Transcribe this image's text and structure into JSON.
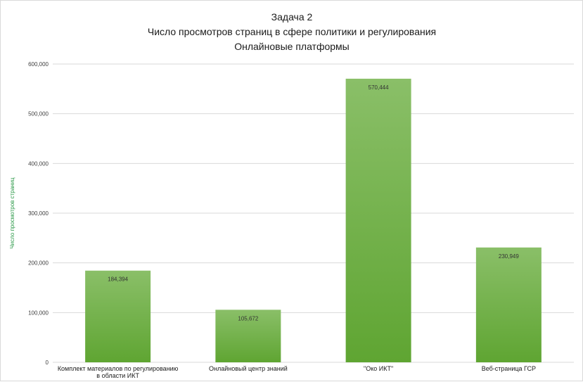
{
  "chart_data": {
    "type": "bar",
    "title": [
      "Задача 2",
      "Число просмотров страниц в сфере политики и регулирования",
      "Онлайновые платформы"
    ],
    "ylabel": "Число просмотров страниц",
    "xlabel": "",
    "categories": [
      [
        "Комплект материалов по регулированию",
        "в области ИКТ"
      ],
      [
        "Онлайновый центр знаний"
      ],
      [
        "\"Око ИКТ\""
      ],
      [
        "Веб-страница ГСР"
      ]
    ],
    "values": [
      184394,
      105672,
      570444,
      230949
    ],
    "data_labels": [
      "184,394",
      "105,672",
      "570,444",
      "230,949"
    ],
    "ylim": [
      0,
      600000
    ],
    "yticks": [
      0,
      100000,
      200000,
      300000,
      400000,
      500000,
      600000
    ],
    "ytick_labels": [
      "0",
      "100,000",
      "200,000",
      "300,000",
      "400,000",
      "500,000",
      "600,000"
    ],
    "grid": true,
    "legend": "none",
    "colors": {
      "bar_top": "#8abf68",
      "bar_bottom": "#5fa532",
      "grid": "#d9d9d9",
      "ylabel": "#2e9a4a"
    }
  }
}
